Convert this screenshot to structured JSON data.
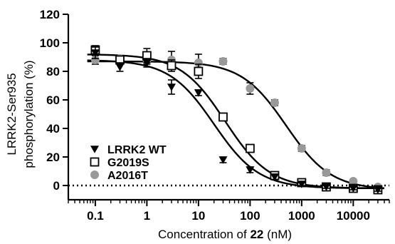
{
  "chart_data": {
    "type": "scatter",
    "xlabel": {
      "prefix": "Concentration of ",
      "bold": "22",
      "suffix": " (nM)"
    },
    "ylabel": {
      "line1": "LRRK2-Ser935",
      "line2": "phosphorylation (%)"
    },
    "x_scale": "log",
    "xlim": [
      0.03,
      50000
    ],
    "ylim": [
      -10,
      120
    ],
    "x_ticks": [
      0.1,
      1,
      10,
      100,
      1000,
      10000
    ],
    "x_tick_labels": [
      "0.1",
      "1",
      "10",
      "100",
      "1000",
      "10000"
    ],
    "y_ticks": [
      0,
      20,
      40,
      60,
      80,
      100,
      120
    ],
    "y_tick_labels": [
      "0",
      "20",
      "40",
      "60",
      "80",
      "100",
      "120"
    ],
    "reference_line": {
      "y": 0,
      "style": "dotted"
    },
    "legend_position": "bottom-left",
    "series": [
      {
        "name": "LRRK2 WT",
        "marker": "triangle-down",
        "color": "#000000",
        "x": [
          0.1,
          0.3,
          1,
          3,
          10,
          30,
          100,
          300,
          1000,
          3000,
          10000,
          30000
        ],
        "y": [
          93,
          83,
          86,
          69,
          65,
          18,
          11,
          6,
          1,
          -1,
          -2,
          -3
        ],
        "err": [
          4,
          3,
          3,
          5,
          2,
          2,
          2,
          2,
          1,
          1,
          1,
          1
        ],
        "fit": {
          "top": 88,
          "bottom": -2,
          "ic50": 20,
          "hill": 1
        }
      },
      {
        "name": "G2019S",
        "marker": "square-open",
        "color": "#000000",
        "x": [
          0.1,
          0.3,
          1,
          3,
          10,
          30,
          100,
          300,
          1000,
          3000,
          10000,
          30000
        ],
        "y": [
          95,
          88,
          91,
          84,
          80,
          48,
          26,
          7,
          2,
          -1,
          -2,
          -3
        ],
        "err": [
          3,
          2,
          5,
          4,
          5,
          2,
          2,
          2,
          1,
          1,
          2,
          1
        ],
        "fit": {
          "top": 92,
          "bottom": -2,
          "ic50": 33,
          "hill": 1
        }
      },
      {
        "name": "A2016T",
        "marker": "circle-filled",
        "color": "#999999",
        "x": [
          0.1,
          0.3,
          1,
          3,
          10,
          30,
          100,
          300,
          1000,
          3000,
          10000,
          30000
        ],
        "y": [
          88,
          89,
          88,
          88,
          86,
          87,
          68,
          58,
          26,
          9,
          3,
          -1
        ],
        "err": [
          3,
          2,
          3,
          6,
          6,
          2,
          4,
          2,
          2,
          2,
          1,
          1
        ],
        "fit": {
          "top": 87,
          "bottom": -3,
          "ic50": 500,
          "hill": 1
        }
      }
    ]
  }
}
